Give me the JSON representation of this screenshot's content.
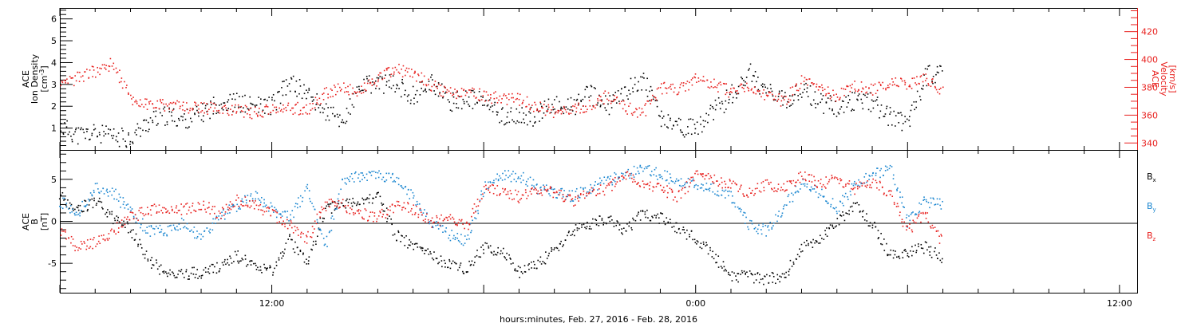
{
  "xaxis": {
    "label": "hours:minutes, Feb. 27, 2016 - Feb. 28, 2016",
    "range_hours": [
      6.0,
      36.5
    ],
    "ticks": [
      {
        "hour": 12,
        "label": "12:00"
      },
      {
        "hour": 24,
        "label": "0:00"
      },
      {
        "hour": 36,
        "label": "12:00"
      }
    ]
  },
  "colors": {
    "black": "#000000",
    "red": "#e8201e",
    "blue": "#1a86d0"
  },
  "chart_data": [
    {
      "type": "scatter",
      "left_axis": {
        "label_lines": [
          "ACE",
          "Ion Density"
        ],
        "unit_base": "[cm",
        "unit_sup": "-3",
        "unit_end": "]",
        "ylim": [
          0,
          6.5
        ],
        "ticks": [
          1,
          2,
          3,
          4,
          5,
          6
        ]
      },
      "right_axis": {
        "label_lines": [
          "ACE",
          "Velocity",
          "[km/s]"
        ],
        "ylim": [
          335,
          437
        ],
        "ticks": [
          340,
          360,
          380,
          400,
          420
        ]
      },
      "series": [
        {
          "color": "black",
          "axis": "left",
          "x": [
            6.0,
            6.5,
            7.0,
            7.5,
            8.0,
            8.5,
            9.0,
            9.5,
            10.0,
            10.5,
            11.0,
            11.5,
            12.0,
            12.5,
            13.0,
            13.5,
            14.0,
            14.5,
            15.0,
            15.5,
            16.0,
            16.5,
            17.0,
            17.5,
            18.0,
            18.5,
            19.0,
            19.5,
            20.0,
            20.5,
            21.0,
            21.5,
            22.0,
            22.5,
            23.0,
            23.5,
            24.0,
            24.5,
            25.0,
            25.5,
            26.0,
            26.5,
            27.0,
            27.5,
            28.0,
            28.5,
            29.0,
            29.5,
            30.0,
            30.5,
            31.0
          ],
          "y": [
            1.1,
            0.7,
            0.8,
            0.6,
            0.6,
            1.3,
            1.6,
            1.4,
            1.7,
            2.2,
            2.2,
            2.0,
            2.1,
            3.1,
            2.6,
            1.8,
            1.3,
            2.9,
            3.1,
            3.0,
            2.5,
            3.2,
            2.2,
            2.4,
            2.2,
            1.6,
            1.5,
            1.6,
            2.1,
            2.0,
            2.6,
            2.0,
            2.7,
            3.3,
            1.5,
            1.1,
            1.0,
            1.8,
            2.5,
            3.6,
            2.7,
            2.2,
            2.8,
            2.2,
            2.0,
            2.3,
            2.2,
            1.5,
            1.3,
            3.4,
            3.6
          ]
        },
        {
          "color": "red",
          "axis": "right",
          "x": [
            6.0,
            6.5,
            7.0,
            7.5,
            8.0,
            8.5,
            9.0,
            9.5,
            10.0,
            10.5,
            11.0,
            11.5,
            12.0,
            12.5,
            13.0,
            13.5,
            14.0,
            14.5,
            15.0,
            15.5,
            16.0,
            16.5,
            17.0,
            17.5,
            18.0,
            18.5,
            19.0,
            19.5,
            20.0,
            20.5,
            21.0,
            21.5,
            22.0,
            22.5,
            23.0,
            23.5,
            24.0,
            24.5,
            25.0,
            25.5,
            26.0,
            26.5,
            27.0,
            27.5,
            28.0,
            28.5,
            29.0,
            29.5,
            30.0,
            30.5,
            31.0
          ],
          "y": [
            380,
            388,
            392,
            398,
            372,
            368,
            368,
            366,
            365,
            366,
            364,
            362,
            364,
            366,
            364,
            376,
            380,
            378,
            386,
            394,
            390,
            382,
            376,
            378,
            374,
            372,
            372,
            366,
            362,
            364,
            368,
            374,
            366,
            362,
            380,
            378,
            386,
            382,
            377,
            380,
            374,
            370,
            385,
            378,
            374,
            382,
            378,
            384,
            382,
            386,
            378
          ]
        }
      ]
    },
    {
      "type": "scatter",
      "left_axis": {
        "label_lines": [
          "ACE",
          "B",
          "[nT]"
        ],
        "ylim": [
          -8.5,
          8.5
        ],
        "ticks": [
          -5,
          0,
          5
        ],
        "zero_line": true
      },
      "legend": [
        {
          "text": "B",
          "sub": "x",
          "color": "black"
        },
        {
          "text": "B",
          "sub": "y",
          "color": "blue"
        },
        {
          "text": "B",
          "sub": "z",
          "color": "red"
        }
      ],
      "series": [
        {
          "color": "black",
          "name": "Bx",
          "x": [
            6.0,
            6.5,
            7.0,
            7.5,
            8.0,
            8.5,
            9.0,
            9.5,
            10.0,
            10.5,
            11.0,
            11.5,
            12.0,
            12.5,
            13.0,
            13.5,
            14.0,
            14.5,
            15.0,
            15.5,
            16.0,
            16.5,
            17.0,
            17.5,
            18.0,
            18.5,
            19.0,
            19.5,
            20.0,
            20.5,
            21.0,
            21.5,
            22.0,
            22.5,
            23.0,
            23.5,
            24.0,
            24.5,
            25.0,
            25.5,
            26.0,
            26.5,
            27.0,
            27.5,
            28.0,
            28.5,
            29.0,
            29.5,
            30.0,
            30.5,
            31.0
          ],
          "y": [
            3.0,
            1.5,
            2.5,
            0.5,
            -1.0,
            -4.5,
            -6.2,
            -6.2,
            -6.0,
            -5.5,
            -4.0,
            -5.5,
            -6.0,
            -2.0,
            -5.0,
            1.5,
            2.0,
            2.5,
            3.0,
            -1.5,
            -3.0,
            -4.0,
            -5.0,
            -5.5,
            -3.0,
            -3.5,
            -6.0,
            -5.0,
            -3.5,
            -1.0,
            -0.5,
            0.5,
            -1.0,
            1.0,
            0.5,
            -1.0,
            -2.0,
            -4.0,
            -6.5,
            -6.5,
            -6.8,
            -6.5,
            -3.0,
            -2.0,
            0.0,
            2.0,
            -0.5,
            -4.0,
            -3.5,
            -3.0,
            -4.5
          ]
        },
        {
          "color": "blue",
          "name": "By",
          "x": [
            6.0,
            6.5,
            7.0,
            7.5,
            8.0,
            8.5,
            9.0,
            9.5,
            10.0,
            10.5,
            11.0,
            11.5,
            12.0,
            12.5,
            13.0,
            13.5,
            14.0,
            14.5,
            15.0,
            15.5,
            16.0,
            16.5,
            17.0,
            17.5,
            18.0,
            18.5,
            19.0,
            19.5,
            20.0,
            20.5,
            21.0,
            21.5,
            22.0,
            22.5,
            23.0,
            23.5,
            24.0,
            24.5,
            25.0,
            25.5,
            26.0,
            26.5,
            27.0,
            27.5,
            28.0,
            28.5,
            29.0,
            29.5,
            30.0,
            30.5,
            31.0
          ],
          "y": [
            2.5,
            1.0,
            4.0,
            3.5,
            1.0,
            -1.0,
            -1.0,
            0.0,
            -2.0,
            0.5,
            2.0,
            3.0,
            1.5,
            0.5,
            4.0,
            -3.0,
            5.0,
            5.5,
            5.5,
            5.0,
            3.0,
            0.0,
            -1.5,
            -2.5,
            4.0,
            5.5,
            5.5,
            4.0,
            3.5,
            3.0,
            4.0,
            5.0,
            5.5,
            6.5,
            5.5,
            5.0,
            4.5,
            4.0,
            3.0,
            -0.5,
            -1.0,
            2.0,
            4.5,
            3.5,
            1.5,
            4.5,
            5.5,
            6.5,
            0.0,
            2.5,
            2.0
          ]
        },
        {
          "color": "red",
          "name": "Bz",
          "x": [
            6.0,
            6.5,
            7.0,
            7.5,
            8.0,
            8.5,
            9.0,
            9.5,
            10.0,
            10.5,
            11.0,
            11.5,
            12.0,
            12.5,
            13.0,
            13.5,
            14.0,
            14.5,
            15.0,
            15.5,
            16.0,
            16.5,
            17.0,
            17.5,
            18.0,
            18.5,
            19.0,
            19.5,
            20.0,
            20.5,
            21.0,
            21.5,
            22.0,
            22.5,
            23.0,
            23.5,
            24.0,
            24.5,
            25.0,
            25.5,
            26.0,
            26.5,
            27.0,
            27.5,
            28.0,
            28.5,
            29.0,
            29.5,
            30.0,
            30.5,
            31.0
          ],
          "y": [
            -1.0,
            -3.0,
            -2.5,
            -1.0,
            0.5,
            1.5,
            1.5,
            1.5,
            2.0,
            1.0,
            2.5,
            2.0,
            1.0,
            -0.5,
            -2.0,
            2.0,
            2.0,
            1.0,
            0.5,
            2.0,
            1.5,
            0.0,
            0.5,
            -0.5,
            4.0,
            3.5,
            3.0,
            3.5,
            3.5,
            2.5,
            3.5,
            4.0,
            5.5,
            4.5,
            4.0,
            3.0,
            5.5,
            5.0,
            4.5,
            3.5,
            4.5,
            4.0,
            5.5,
            4.5,
            5.0,
            4.0,
            4.5,
            3.5,
            -1.0,
            1.0,
            -2.5
          ]
        }
      ]
    }
  ]
}
